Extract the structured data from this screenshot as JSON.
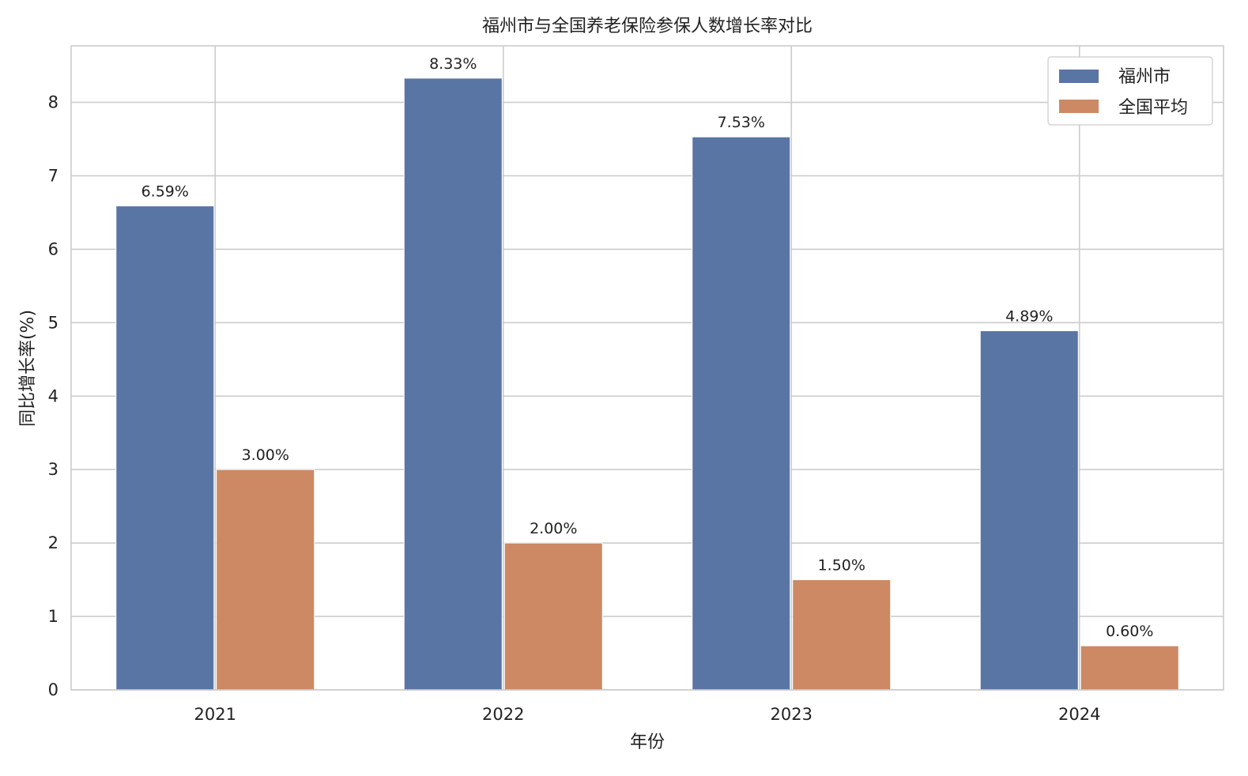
{
  "chart_data": {
    "type": "bar",
    "title": "福州市与全国养老保险参保人数增长率对比",
    "xlabel": "年份",
    "ylabel": "同比增长率(%)",
    "categories": [
      "2021",
      "2022",
      "2023",
      "2024"
    ],
    "series": [
      {
        "name": "福州市",
        "color": "#5975a4",
        "values": [
          6.59,
          8.33,
          7.53,
          4.89
        ],
        "labels": [
          "6.59%",
          "8.33%",
          "7.53%",
          "4.89%"
        ]
      },
      {
        "name": "全国平均",
        "color": "#cc8963",
        "values": [
          3.0,
          2.0,
          1.5,
          0.6
        ],
        "labels": [
          "3.00%",
          "2.00%",
          "1.50%",
          "0.60%"
        ]
      }
    ],
    "ylim": [
      0,
      8.77
    ],
    "yticks": [
      "0",
      "1",
      "2",
      "3",
      "4",
      "5",
      "6",
      "7",
      "8"
    ],
    "grid": true,
    "legend_position": "top-right"
  }
}
